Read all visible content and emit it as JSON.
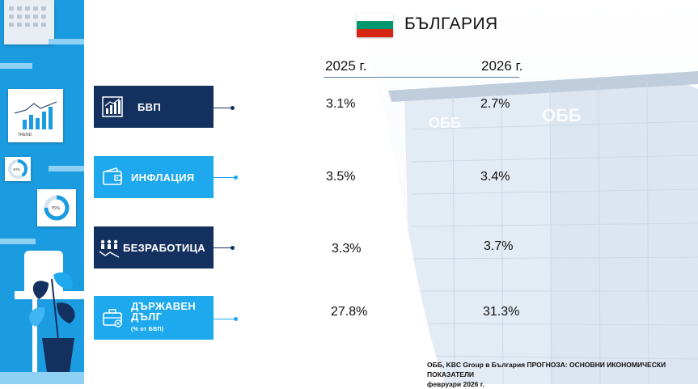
{
  "country": "БЪЛГАРИЯ",
  "years": [
    "2025 г.",
    "2026 г."
  ],
  "indicators": [
    {
      "label": "БВП",
      "sub": "",
      "v2025": "3.1%",
      "v2026": "2.7%"
    },
    {
      "label": "ИНФЛАЦИЯ",
      "sub": "",
      "v2025": "3.5%",
      "v2026": "3.4%"
    },
    {
      "label": "БЕЗРАБОТИЦА",
      "sub": "",
      "v2025": "3.3%",
      "v2026": "3.7%"
    },
    {
      "label": "ДЪРЖАВЕН ДЪЛГ",
      "sub": "(% от БВП)",
      "v2025": "27.8%",
      "v2026": "31.3%"
    }
  ],
  "decor": {
    "trend_label": "TREND",
    "pct_a": "40%",
    "pct_b": "75%",
    "photo_sign": "ОББ",
    "photo_sign_b": "ОББ"
  },
  "footer": {
    "line1": "ОББ, KBC Group в България ПРОГНОЗА: ОСНОВНИ ИКОНОМИЧЕСКИ ПОКАЗАТЕЛИ",
    "line2": "февруари 2026 г."
  },
  "colors": {
    "navy": "#14305f",
    "cyan": "#1ea9ef",
    "panel": "#1b9be0",
    "flag_white": "#ffffff",
    "flag_green": "#00966e",
    "flag_red": "#d62612"
  }
}
